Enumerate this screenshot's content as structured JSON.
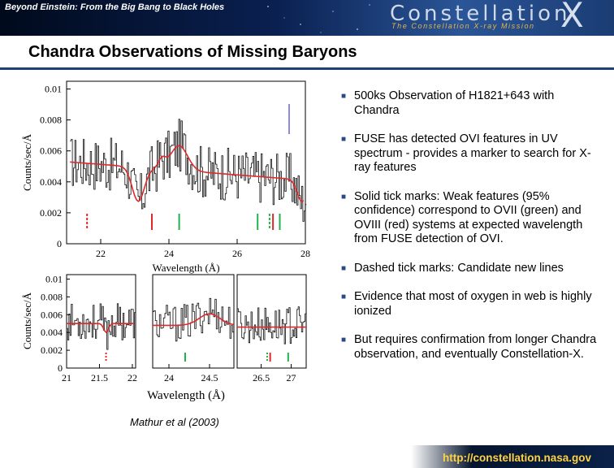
{
  "header": {
    "title": "Beyond Einstein: From the Big Bang to Black Holes",
    "logo_word": "Constellation",
    "logo_x": "X",
    "logo_subtitle": "The Constellation X-ray Mission"
  },
  "slide": {
    "title": "Chandra Observations of Missing Baryons"
  },
  "figure": {
    "top_panel": {
      "y_ticks": [
        "0.01",
        "0.008",
        "0.006",
        "0.004",
        "0.002",
        "0"
      ],
      "x_ticks": [
        "22",
        "24",
        "26",
        "28"
      ]
    },
    "bottom_panel": {
      "y_ticks": [
        "0.01",
        "0.008",
        "0.006",
        "0.004",
        "0.002",
        "0"
      ],
      "x_ticks": [
        "21",
        "21.5",
        "22",
        "24",
        "24.5",
        "26.5",
        "27"
      ]
    },
    "ylabel": "Counts/sec/Å",
    "xlabel": "Wavelength (Å)",
    "credit": "Mathur et al (2003)"
  },
  "bullets": [
    "500ks Observation of H1821+643 with Chandra",
    "FUSE has detected OVI features in UV spectrum - provides a marker to search for X-ray features",
    "Solid tick marks: Weak features (95% confidence) correspond to OVII (green) and OVIII (red) systems at expected wavelength from FUSE detection of OVI.",
    "Dashed tick marks: Candidate new lines",
    "Evidence that most of oxygen in web is highly ionized",
    "But requires confirmation from longer Chandra observation, and eventually Constellation-X."
  ],
  "footer": {
    "url": "http://constellation.nasa.gov"
  },
  "colors": {
    "model_line": "#e0282a",
    "ovii_marker": "#22b24c",
    "oviii_marker": "#e0282a",
    "candidate_marker": "#4040c0",
    "data_line": "#111111"
  }
}
